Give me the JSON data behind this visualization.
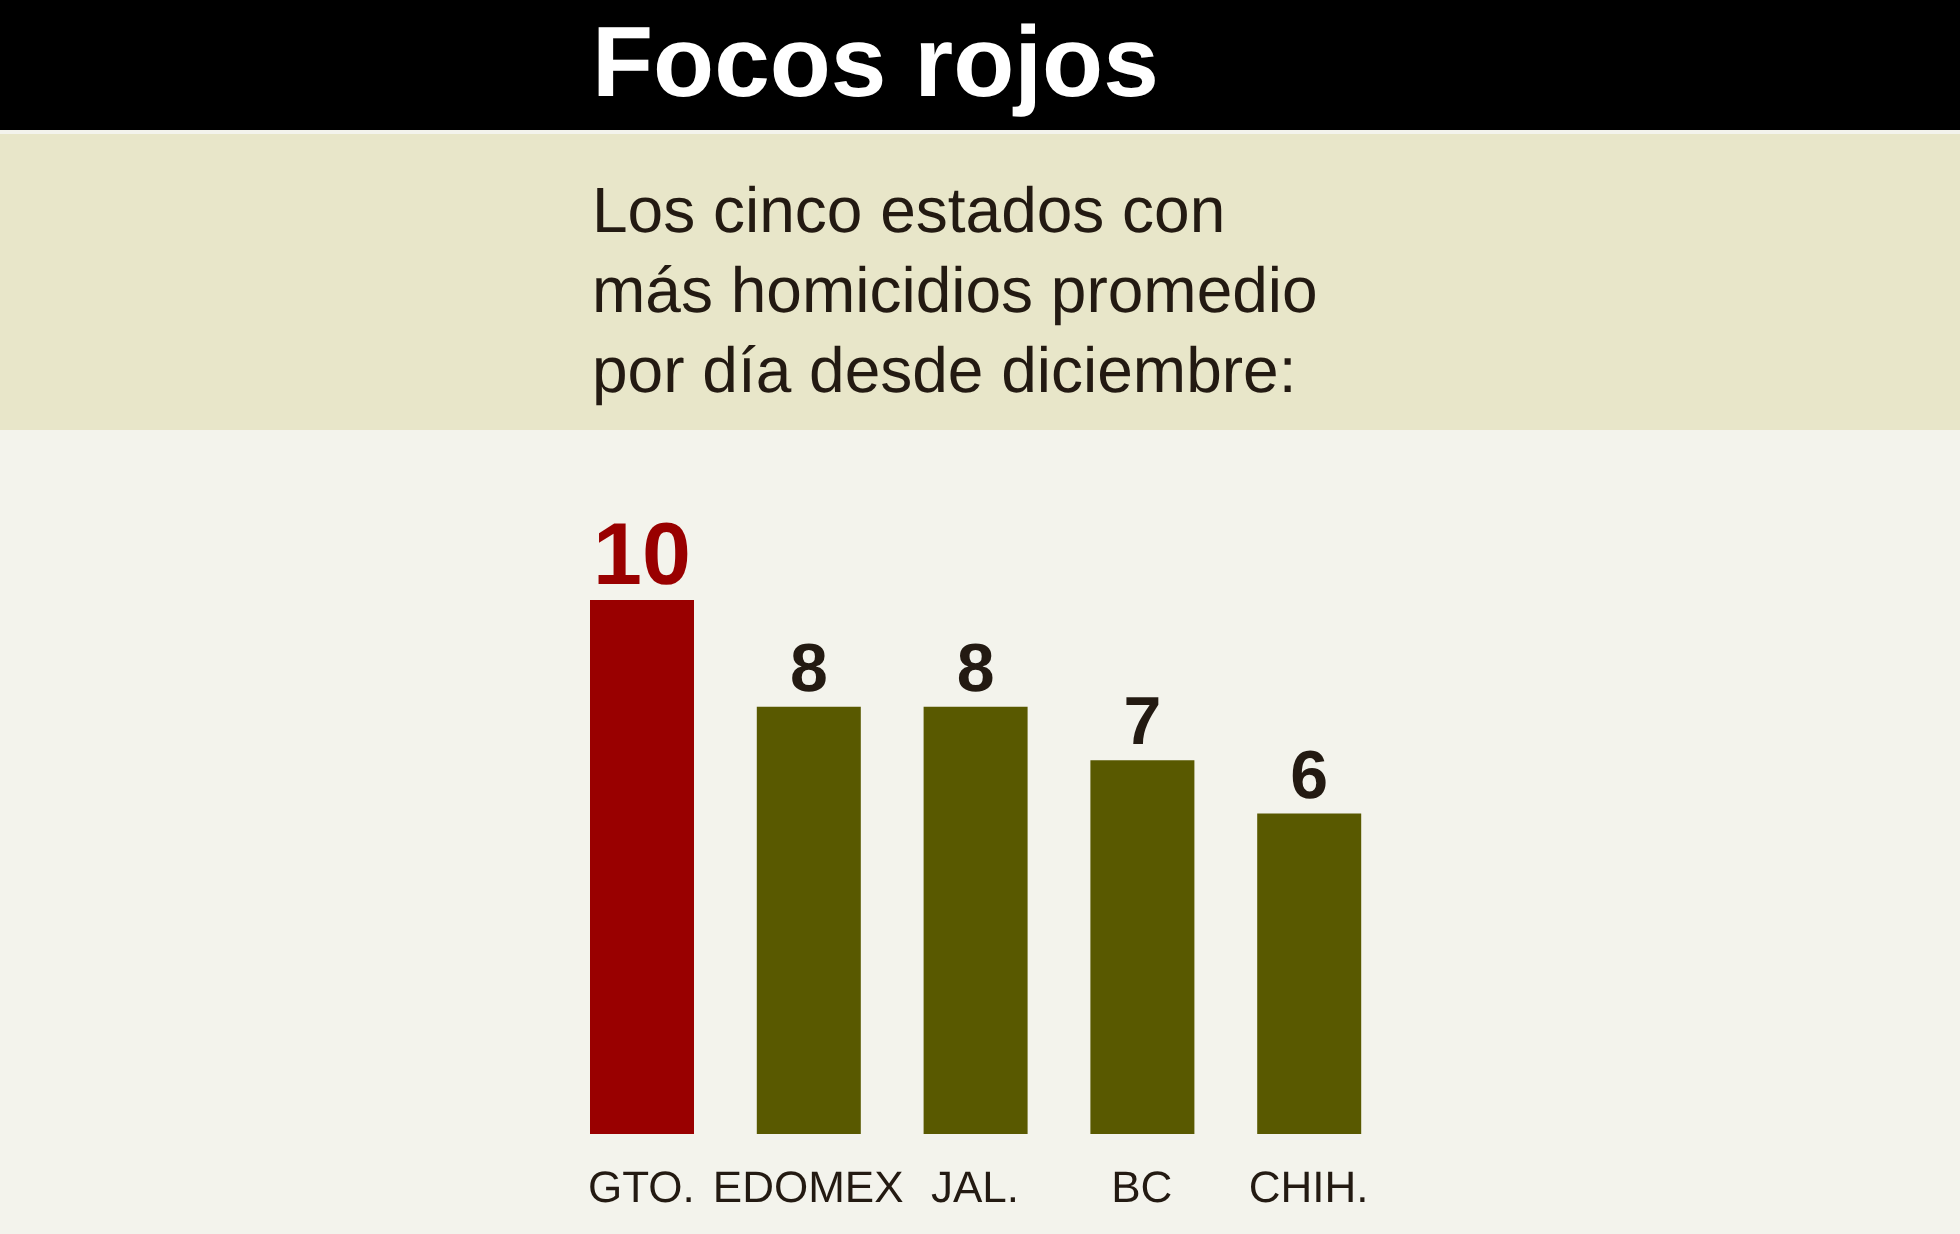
{
  "chart_data": {
    "type": "bar",
    "title": "Focos rojos",
    "subtitle": "Los cinco estados con más homicidios promedio por día desde diciembre:",
    "categories": [
      "GTO.",
      "EDOMEX",
      "JAL.",
      "BC",
      "CHIH."
    ],
    "values": [
      10,
      8,
      8,
      7,
      6
    ],
    "colors": [
      "#990000",
      "#595900",
      "#595900",
      "#595900",
      "#595900"
    ],
    "data_labels": true
  }
}
